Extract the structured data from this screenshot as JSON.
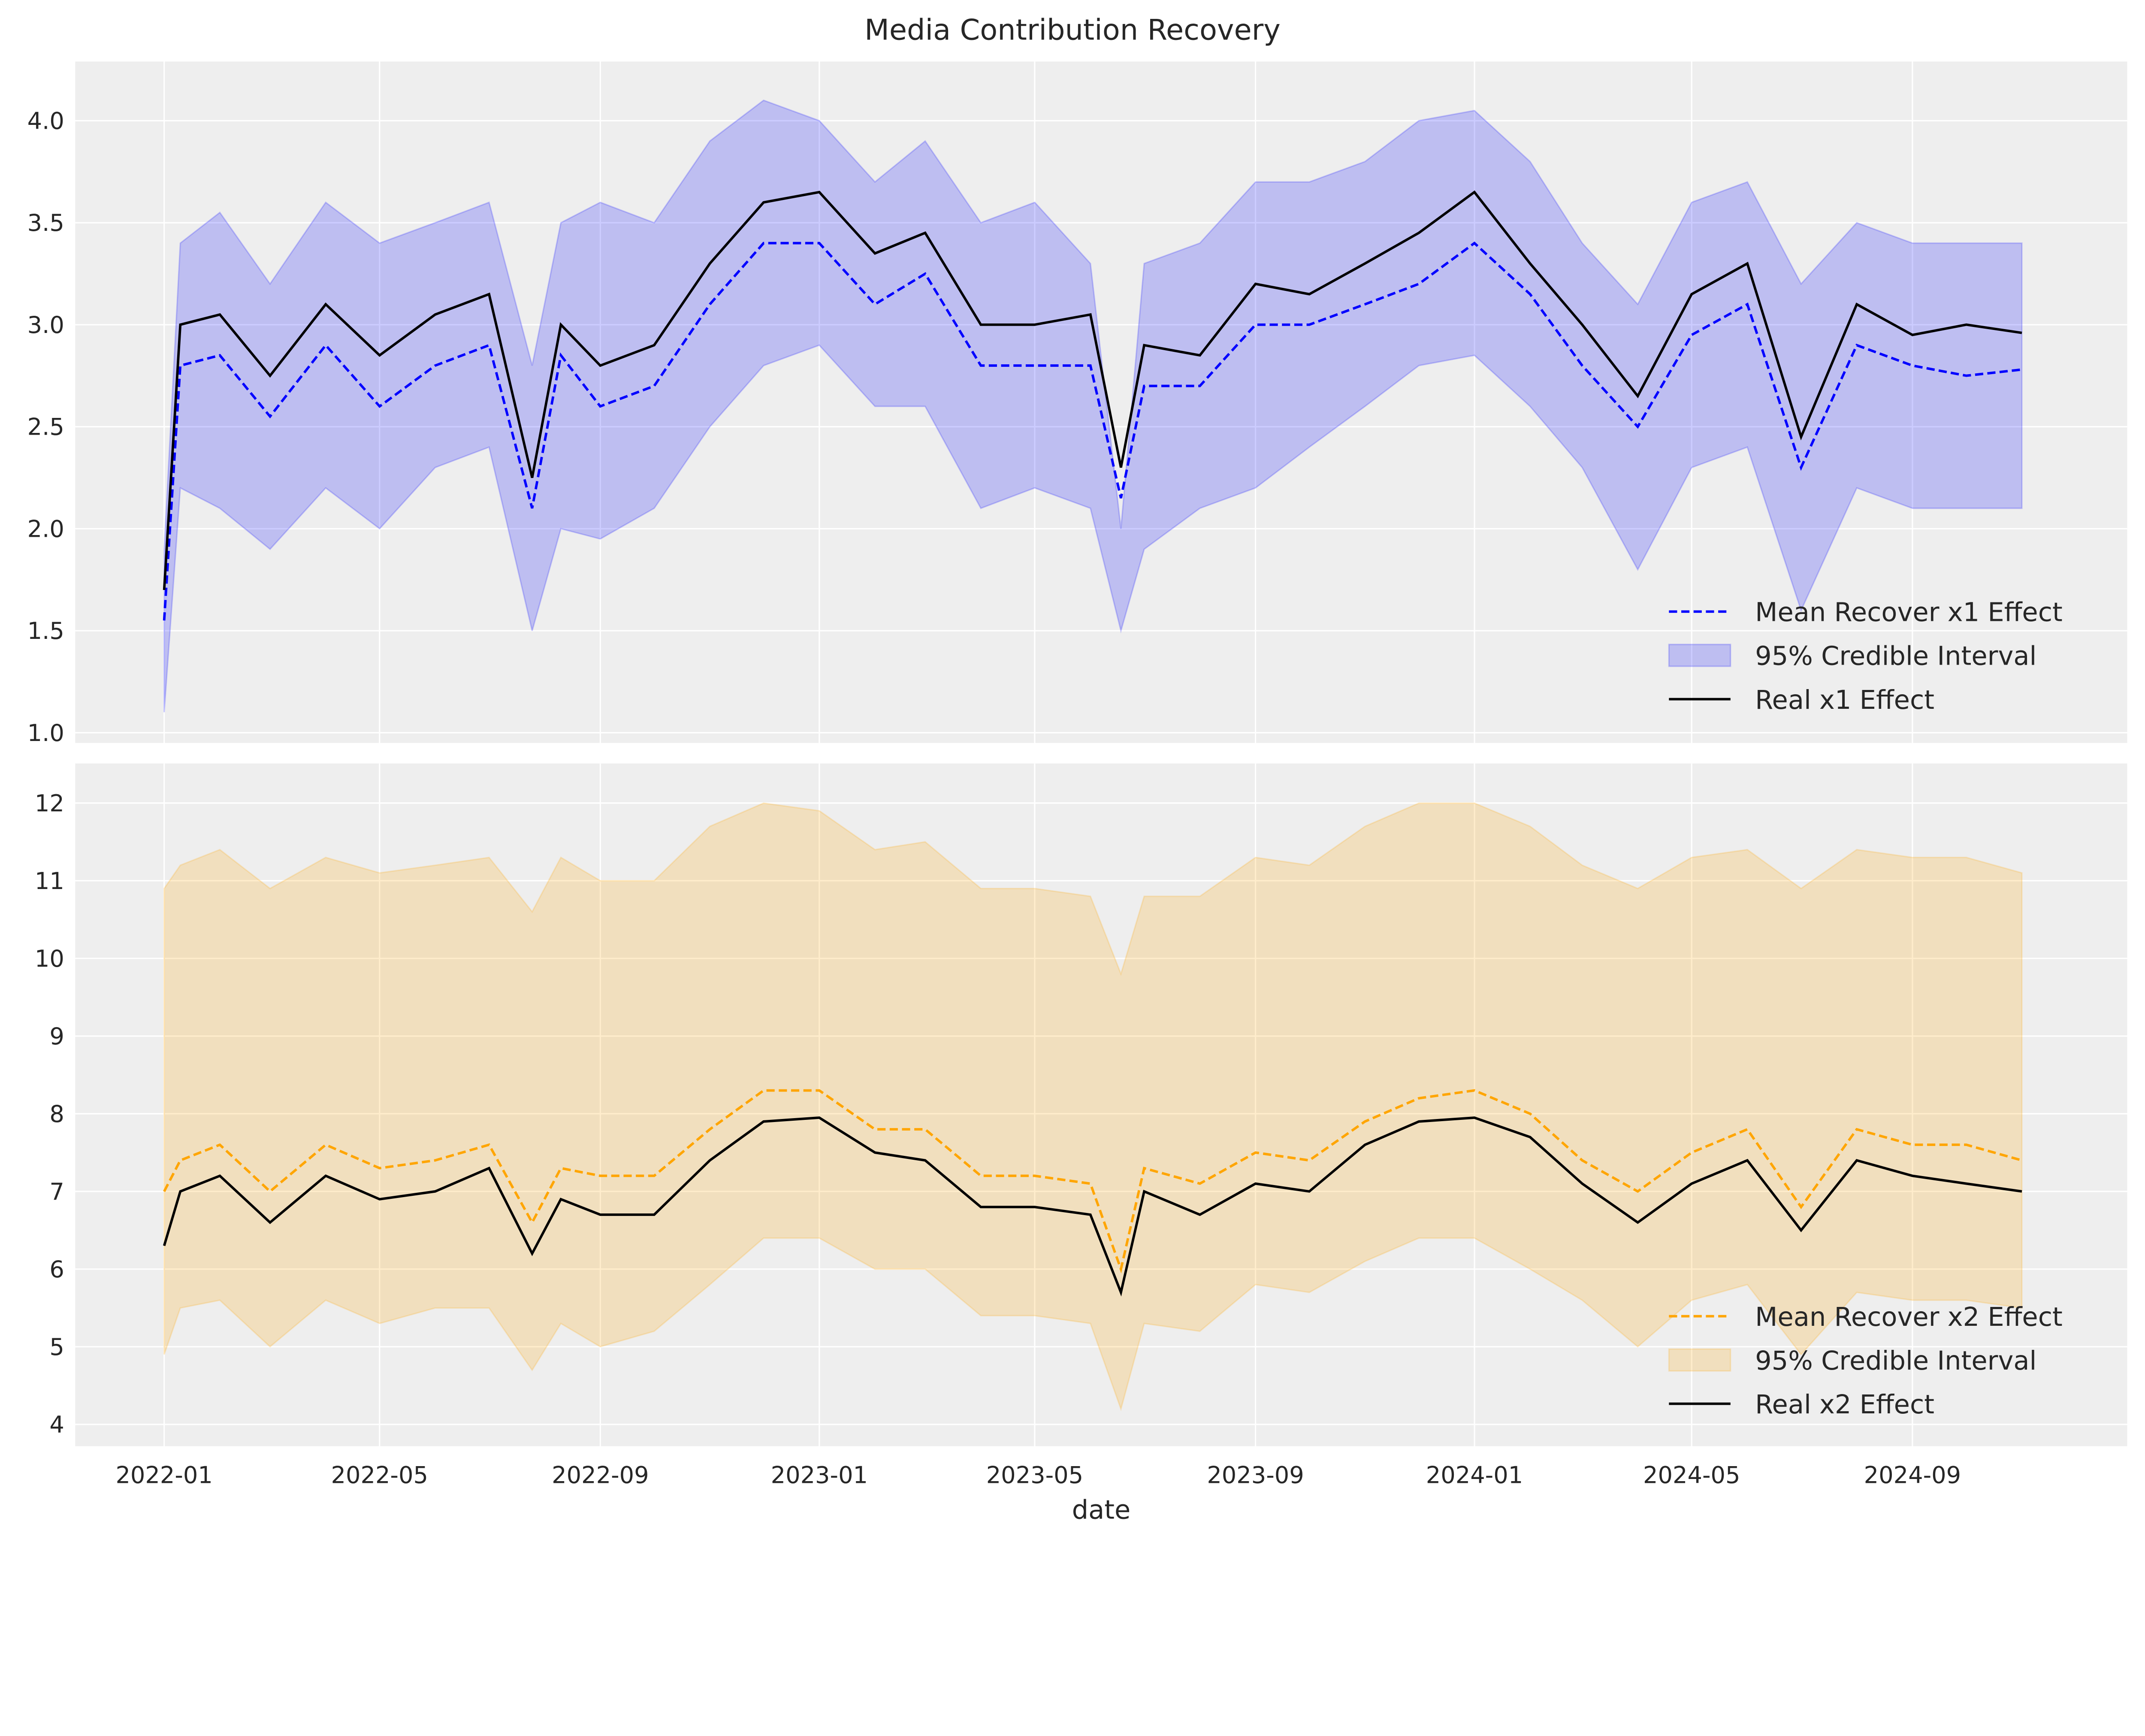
{
  "chart_data": [
    {
      "type": "line",
      "title": "Media Contribution Recovery",
      "xlabel": "",
      "ylabel": "",
      "ylim": [
        0.95,
        4.29
      ],
      "yticks": [
        "1.0",
        "1.5",
        "2.0",
        "2.5",
        "3.0",
        "3.5",
        "4.0"
      ],
      "xticks": [
        "2022-01",
        "2022-05",
        "2022-09",
        "2023-01",
        "2023-05",
        "2023-09",
        "2024-01",
        "2024-05",
        "2024-09"
      ],
      "grid": true,
      "legend_position": "lower-right",
      "x": [
        "2022-01-01",
        "2022-01-10",
        "2022-02-01",
        "2022-03-01",
        "2022-04-01",
        "2022-05-01",
        "2022-06-01",
        "2022-07-01",
        "2022-07-25",
        "2022-08-10",
        "2022-09-01",
        "2022-10-01",
        "2022-11-01",
        "2022-12-01",
        "2023-01-01",
        "2023-02-01",
        "2023-03-01",
        "2023-04-01",
        "2023-05-01",
        "2023-06-01",
        "2023-06-18",
        "2023-07-01",
        "2023-08-01",
        "2023-09-01",
        "2023-10-01",
        "2023-11-01",
        "2023-12-01",
        "2024-01-01",
        "2024-02-01",
        "2024-03-01",
        "2024-04-01",
        "2024-05-01",
        "2024-06-01",
        "2024-07-01",
        "2024-08-01",
        "2024-09-01",
        "2024-10-01",
        "2024-11-01"
      ],
      "series": [
        {
          "name": "95% Credible Interval",
          "role": "band",
          "color": "#0000ff",
          "upper": [
            1.9,
            3.4,
            3.55,
            3.2,
            3.6,
            3.4,
            3.5,
            3.6,
            2.8,
            3.5,
            3.6,
            3.5,
            3.9,
            4.1,
            4.0,
            3.7,
            3.9,
            3.5,
            3.6,
            3.3,
            2.0,
            3.3,
            3.4,
            3.7,
            3.7,
            3.8,
            4.0,
            4.05,
            3.8,
            3.4,
            3.1,
            3.6,
            3.7,
            3.2,
            3.5,
            3.4,
            3.4,
            3.4
          ],
          "lower": [
            1.1,
            2.2,
            2.1,
            1.9,
            2.2,
            2.0,
            2.3,
            2.4,
            1.5,
            2.0,
            1.95,
            2.1,
            2.5,
            2.8,
            2.9,
            2.6,
            2.6,
            2.1,
            2.2,
            2.1,
            1.5,
            1.9,
            2.1,
            2.2,
            2.4,
            2.6,
            2.8,
            2.85,
            2.6,
            2.3,
            1.8,
            2.3,
            2.4,
            1.6,
            2.2,
            2.1,
            2.1,
            2.1
          ]
        },
        {
          "name": "Mean Recover x1 Effect",
          "role": "mean",
          "color": "#0000ff",
          "values": [
            1.55,
            2.8,
            2.85,
            2.55,
            2.9,
            2.6,
            2.8,
            2.9,
            2.1,
            2.85,
            2.6,
            2.7,
            3.1,
            3.4,
            3.4,
            3.1,
            3.25,
            2.8,
            2.8,
            2.8,
            2.15,
            2.7,
            2.7,
            3.0,
            3.0,
            3.1,
            3.2,
            3.4,
            3.15,
            2.8,
            2.5,
            2.95,
            3.1,
            2.3,
            2.9,
            2.8,
            2.75,
            2.78
          ]
        },
        {
          "name": "Real x1 Effect",
          "role": "real",
          "color": "#000000",
          "values": [
            1.7,
            3.0,
            3.05,
            2.75,
            3.1,
            2.85,
            3.05,
            3.15,
            2.25,
            3.0,
            2.8,
            2.9,
            3.3,
            3.6,
            3.65,
            3.35,
            3.45,
            3.0,
            3.0,
            3.05,
            2.3,
            2.9,
            2.85,
            3.2,
            3.15,
            3.3,
            3.45,
            3.65,
            3.3,
            3.0,
            2.65,
            3.15,
            3.3,
            2.45,
            3.1,
            2.95,
            3.0,
            2.96
          ]
        }
      ]
    },
    {
      "type": "line",
      "xlabel": "date",
      "ylabel": "",
      "ylim": [
        3.72,
        12.51
      ],
      "yticks": [
        "4",
        "5",
        "6",
        "7",
        "8",
        "9",
        "10",
        "11",
        "12"
      ],
      "xticks": [
        "2022-01",
        "2022-05",
        "2022-09",
        "2023-01",
        "2023-05",
        "2023-09",
        "2024-01",
        "2024-05",
        "2024-09"
      ],
      "grid": true,
      "legend_position": "lower-right",
      "x": [
        "2022-01-01",
        "2022-01-10",
        "2022-02-01",
        "2022-03-01",
        "2022-04-01",
        "2022-05-01",
        "2022-06-01",
        "2022-07-01",
        "2022-07-25",
        "2022-08-10",
        "2022-09-01",
        "2022-10-01",
        "2022-11-01",
        "2022-12-01",
        "2023-01-01",
        "2023-02-01",
        "2023-03-01",
        "2023-04-01",
        "2023-05-01",
        "2023-06-01",
        "2023-06-18",
        "2023-07-01",
        "2023-08-01",
        "2023-09-01",
        "2023-10-01",
        "2023-11-01",
        "2023-12-01",
        "2024-01-01",
        "2024-02-01",
        "2024-03-01",
        "2024-04-01",
        "2024-05-01",
        "2024-06-01",
        "2024-07-01",
        "2024-08-01",
        "2024-09-01",
        "2024-10-01",
        "2024-11-01"
      ],
      "series": [
        {
          "name": "95% Credible Interval",
          "role": "band",
          "color": "#ffa500",
          "upper": [
            10.9,
            11.2,
            11.4,
            10.9,
            11.3,
            11.1,
            11.2,
            11.3,
            10.6,
            11.3,
            11.0,
            11.0,
            11.7,
            12.0,
            11.9,
            11.4,
            11.5,
            10.9,
            10.9,
            10.8,
            9.8,
            10.8,
            10.8,
            11.3,
            11.2,
            11.7,
            12.0,
            12.0,
            11.7,
            11.2,
            10.9,
            11.3,
            11.4,
            10.9,
            11.4,
            11.3,
            11.3,
            11.1
          ],
          "lower": [
            4.9,
            5.5,
            5.6,
            5.0,
            5.6,
            5.3,
            5.5,
            5.5,
            4.7,
            5.3,
            5.0,
            5.2,
            5.8,
            6.4,
            6.4,
            6.0,
            6.0,
            5.4,
            5.4,
            5.3,
            4.2,
            5.3,
            5.2,
            5.8,
            5.7,
            6.1,
            6.4,
            6.4,
            6.0,
            5.6,
            5.0,
            5.6,
            5.8,
            4.9,
            5.7,
            5.6,
            5.6,
            5.5
          ]
        },
        {
          "name": "Mean Recover x2 Effect",
          "role": "mean",
          "color": "#ffa500",
          "values": [
            7.0,
            7.4,
            7.6,
            7.0,
            7.6,
            7.3,
            7.4,
            7.6,
            6.6,
            7.3,
            7.2,
            7.2,
            7.8,
            8.3,
            8.3,
            7.8,
            7.8,
            7.2,
            7.2,
            7.1,
            6.0,
            7.3,
            7.1,
            7.5,
            7.4,
            7.9,
            8.2,
            8.3,
            8.0,
            7.4,
            7.0,
            7.5,
            7.8,
            6.8,
            7.8,
            7.6,
            7.6,
            7.4
          ]
        },
        {
          "name": "Real x2 Effect",
          "role": "real",
          "color": "#000000",
          "values": [
            6.3,
            7.0,
            7.2,
            6.6,
            7.2,
            6.9,
            7.0,
            7.3,
            6.2,
            6.9,
            6.7,
            6.7,
            7.4,
            7.9,
            7.95,
            7.5,
            7.4,
            6.8,
            6.8,
            6.7,
            5.7,
            7.0,
            6.7,
            7.1,
            7.0,
            7.6,
            7.9,
            7.95,
            7.7,
            7.1,
            6.6,
            7.1,
            7.4,
            6.5,
            7.4,
            7.2,
            7.1,
            7.0
          ]
        }
      ]
    }
  ]
}
